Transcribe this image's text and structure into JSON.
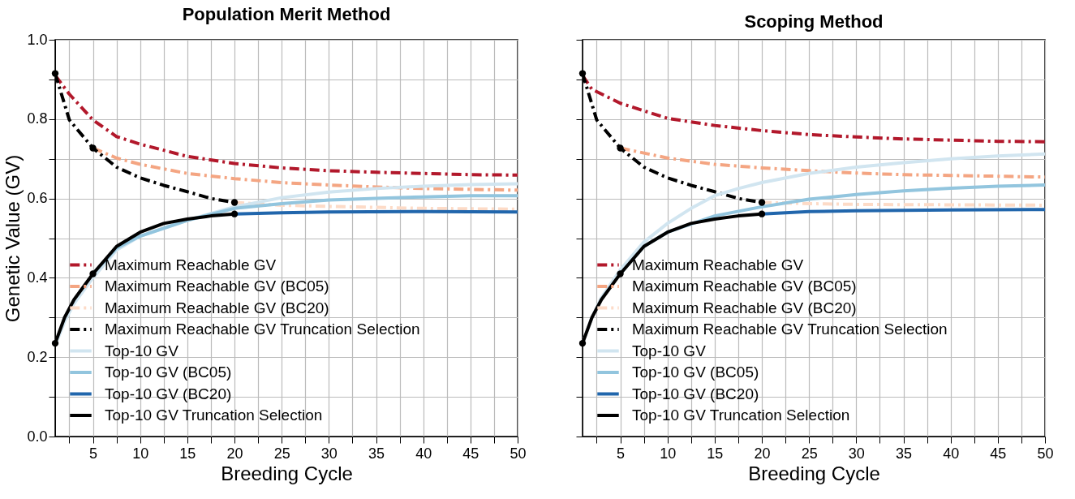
{
  "chart_data": [
    {
      "type": "line",
      "title": "Population Merit Method",
      "xlabel": "Breeding Cycle",
      "ylabel": "Genetic Value (GV)",
      "xlim": [
        1,
        50
      ],
      "ylim": [
        0,
        1
      ],
      "xticks": [
        {
          "value": 2.5,
          "label": null
        },
        5,
        {
          "value": 7.5,
          "label": null
        },
        10,
        {
          "value": 12.5,
          "label": null
        },
        15,
        {
          "value": 17.5,
          "label": null
        },
        20,
        {
          "value": 22.5,
          "label": null
        },
        25,
        {
          "value": 27.5,
          "label": null
        },
        30,
        {
          "value": 32.5,
          "label": null
        },
        35,
        {
          "value": 37.5,
          "label": null
        },
        40,
        {
          "value": 42.5,
          "label": null
        },
        45,
        {
          "value": 47.5,
          "label": null
        },
        50
      ],
      "yticks": [
        {
          "value": 0,
          "label": "0.0"
        },
        {
          "value": 0.1,
          "label": null
        },
        0.2,
        {
          "value": 0.3,
          "label": null
        },
        0.4,
        {
          "value": 0.5,
          "label": null
        },
        0.6,
        {
          "value": 0.7,
          "label": null
        },
        0.8,
        {
          "value": 0.9,
          "label": null
        },
        {
          "value": 1,
          "label": "1.0"
        }
      ],
      "grid": true,
      "legend": "bottom left",
      "series": [
        {
          "name": "Maximum Reachable GV",
          "color": "#b2182b",
          "line_style": "dashed",
          "x": [
            1,
            2.5,
            5,
            7.5,
            10,
            15,
            20,
            25,
            30,
            35,
            40,
            45,
            50
          ],
          "values": [
            0.91,
            0.863,
            0.798,
            0.756,
            0.737,
            0.706,
            0.688,
            0.677,
            0.67,
            0.666,
            0.663,
            0.66,
            0.659
          ]
        },
        {
          "name": "Maximum Reachable GV (BC05)",
          "color": "#f4a582",
          "line_style": "dashed",
          "x": [
            5,
            7.5,
            10,
            15,
            20,
            25,
            30,
            35,
            40,
            45,
            50
          ],
          "values": [
            0.727,
            0.702,
            0.686,
            0.663,
            0.65,
            0.64,
            0.634,
            0.629,
            0.625,
            0.623,
            0.621
          ]
        },
        {
          "name": "Maximum Reachable GV (BC20)",
          "color": "#fddbc7",
          "line_style": "dashed",
          "x": [
            20,
            25,
            30,
            40,
            50
          ],
          "values": [
            0.59,
            0.583,
            0.58,
            0.575,
            0.573
          ]
        },
        {
          "name": "Maximum Reachable GV Truncation Selection",
          "color": "#000000",
          "line_style": "dashed",
          "x": [
            1,
            2.5,
            5,
            7.5,
            10,
            12.5,
            15,
            17.5,
            20
          ],
          "values": [
            0.915,
            0.798,
            0.727,
            0.679,
            0.652,
            0.633,
            0.617,
            0.6,
            0.59
          ]
        },
        {
          "name": "Top-10 GV",
          "color": "#d1e5f0",
          "line_style": "solid",
          "x": [
            1,
            2,
            3,
            5,
            7.5,
            10,
            15,
            20,
            25,
            30,
            35,
            40,
            45,
            50
          ],
          "values": [
            0.23,
            0.29,
            0.335,
            0.4,
            0.47,
            0.505,
            0.545,
            0.579,
            0.602,
            0.616,
            0.625,
            0.631,
            0.635,
            0.637
          ]
        },
        {
          "name": "Top-10 GV (BC05)",
          "color": "#92c5de",
          "line_style": "solid",
          "x": [
            5,
            7.5,
            10,
            15,
            20,
            25,
            30,
            35,
            40,
            45,
            50
          ],
          "values": [
            0.41,
            0.475,
            0.505,
            0.545,
            0.575,
            0.587,
            0.596,
            0.6,
            0.604,
            0.607,
            0.607
          ]
        },
        {
          "name": "Top-10 GV (BC20)",
          "color": "#2166ac",
          "line_style": "solid",
          "x": [
            20,
            25,
            30,
            40,
            50
          ],
          "values": [
            0.561,
            0.564,
            0.566,
            0.567,
            0.566
          ]
        },
        {
          "name": "Top-10 GV Truncation Selection",
          "color": "#000000",
          "line_style": "solid",
          "x": [
            1,
            2,
            3,
            5,
            7.5,
            10,
            12.5,
            15,
            17.5,
            20
          ],
          "values": [
            0.235,
            0.3,
            0.345,
            0.41,
            0.479,
            0.515,
            0.537,
            0.548,
            0.556,
            0.561
          ]
        },
        {
          "type": "scatter",
          "color": "#000000",
          "marker": "circle",
          "x": [
            1,
            5,
            20
          ],
          "values": [
            0.915,
            0.727,
            0.59
          ]
        },
        {
          "type": "scatter",
          "color": "#000000",
          "marker": "circle",
          "x": [
            1,
            5,
            20
          ],
          "values": [
            0.235,
            0.41,
            0.561
          ]
        }
      ]
    },
    {
      "type": "line",
      "title": "Scoping Method",
      "xlabel": "Breeding Cycle",
      "xlim": [
        1,
        50
      ],
      "ylim": [
        0,
        1
      ],
      "tick_labels": "x",
      "xticks": [
        {
          "value": 2.5,
          "label": null
        },
        5,
        {
          "value": 7.5,
          "label": null
        },
        10,
        {
          "value": 12.5,
          "label": null
        },
        15,
        {
          "value": 17.5,
          "label": null
        },
        20,
        {
          "value": 22.5,
          "label": null
        },
        25,
        {
          "value": 27.5,
          "label": null
        },
        30,
        {
          "value": 32.5,
          "label": null
        },
        35,
        {
          "value": 37.5,
          "label": null
        },
        40,
        {
          "value": 42.5,
          "label": null
        },
        45,
        {
          "value": 47.5,
          "label": null
        },
        50
      ],
      "yticks": [
        {
          "value": 0,
          "label": null
        },
        {
          "value": 0.1,
          "label": null
        },
        {
          "value": 0.2,
          "label": null
        },
        {
          "value": 0.3,
          "label": null
        },
        {
          "value": 0.4,
          "label": null
        },
        {
          "value": 0.5,
          "label": null
        },
        {
          "value": 0.6,
          "label": null
        },
        {
          "value": 0.7,
          "label": null
        },
        {
          "value": 0.8,
          "label": null
        },
        {
          "value": 0.9,
          "label": null
        },
        {
          "value": 1,
          "label": null
        }
      ],
      "grid": true,
      "legend": "bottom left",
      "series": [
        {
          "name": "Maximum Reachable GV",
          "color": "#b2182b",
          "line_style": "dashed",
          "x": [
            1,
            2,
            5,
            7.5,
            10,
            15,
            20,
            25,
            30,
            35,
            40,
            45,
            50
          ],
          "values": [
            0.91,
            0.875,
            0.84,
            0.821,
            0.802,
            0.784,
            0.771,
            0.761,
            0.755,
            0.75,
            0.747,
            0.744,
            0.743
          ]
        },
        {
          "name": "Maximum Reachable GV (BC05)",
          "color": "#f4a582",
          "line_style": "dashed",
          "x": [
            5,
            10,
            15,
            20,
            25,
            30,
            35,
            40,
            45,
            50
          ],
          "values": [
            0.727,
            0.702,
            0.686,
            0.677,
            0.67,
            0.664,
            0.66,
            0.658,
            0.656,
            0.654
          ]
        },
        {
          "name": "Maximum Reachable GV (BC20)",
          "color": "#fddbc7",
          "line_style": "dashed",
          "x": [
            20,
            25,
            30,
            40,
            50
          ],
          "values": [
            0.59,
            0.587,
            0.585,
            0.584,
            0.583
          ]
        },
        {
          "name": "Maximum Reachable GV Truncation Selection",
          "color": "#000000",
          "line_style": "dashed",
          "x": [
            1,
            2.5,
            5,
            7.5,
            10,
            12.5,
            15,
            17.5,
            20
          ],
          "values": [
            0.915,
            0.798,
            0.727,
            0.679,
            0.652,
            0.633,
            0.617,
            0.6,
            0.59
          ]
        },
        {
          "name": "Top-10 GV",
          "color": "#d1e5f0",
          "line_style": "solid",
          "x": [
            1,
            2,
            3,
            5,
            7.5,
            10,
            12.5,
            15,
            17.5,
            20,
            25,
            30,
            35,
            40,
            45,
            50
          ],
          "values": [
            0.235,
            0.3,
            0.35,
            0.42,
            0.49,
            0.537,
            0.575,
            0.607,
            0.625,
            0.64,
            0.663,
            0.679,
            0.69,
            0.7,
            0.707,
            0.712
          ]
        },
        {
          "name": "Top-10 GV (BC05)",
          "color": "#92c5de",
          "line_style": "solid",
          "x": [
            5,
            7.5,
            10,
            15,
            20,
            25,
            30,
            35,
            40,
            45,
            50
          ],
          "values": [
            0.41,
            0.479,
            0.515,
            0.556,
            0.579,
            0.598,
            0.61,
            0.619,
            0.626,
            0.631,
            0.634
          ]
        },
        {
          "name": "Top-10 GV (BC20)",
          "color": "#2166ac",
          "line_style": "solid",
          "x": [
            20,
            25,
            30,
            40,
            50
          ],
          "values": [
            0.561,
            0.567,
            0.569,
            0.571,
            0.572
          ]
        },
        {
          "name": "Top-10 GV Truncation Selection",
          "color": "#000000",
          "line_style": "solid",
          "x": [
            1,
            2,
            3,
            5,
            7.5,
            10,
            12.5,
            15,
            17.5,
            20
          ],
          "values": [
            0.235,
            0.3,
            0.345,
            0.41,
            0.479,
            0.515,
            0.537,
            0.548,
            0.556,
            0.561
          ]
        },
        {
          "type": "scatter",
          "color": "#000000",
          "marker": "circle",
          "x": [
            1,
            5,
            20
          ],
          "values": [
            0.915,
            0.727,
            0.59
          ]
        },
        {
          "type": "scatter",
          "color": "#000000",
          "marker": "circle",
          "x": [
            1,
            5,
            20
          ],
          "values": [
            0.235,
            0.41,
            0.561
          ]
        }
      ]
    }
  ]
}
